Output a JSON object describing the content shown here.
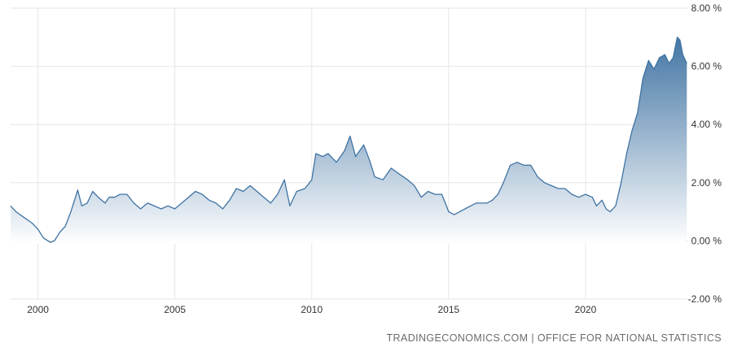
{
  "source": "TRADINGECONOMICS.COM | OFFICE FOR NATIONAL STATISTICS",
  "colors": {
    "line": "#3f73a2",
    "fill_top": "#3a6fa0",
    "fill_bottom": "#ffffff",
    "grid": "#e6e6e6",
    "text": "#333333",
    "source": "#6b6b6b"
  },
  "chart_data": {
    "type": "area",
    "title": "",
    "xlabel": "",
    "ylabel": "",
    "xlim": [
      1999.0,
      2023.75
    ],
    "ylim": [
      -2,
      8
    ],
    "grid": true,
    "y_axis_position": "right",
    "y_ticks": [
      8,
      6,
      4,
      2,
      0,
      -2
    ],
    "y_tick_labels": [
      "8.00 %",
      "6.00 %",
      "4.00 %",
      "2.00 %",
      "0.00 %",
      "-2.00 %"
    ],
    "x_ticks": [
      2000,
      2005,
      2010,
      2015,
      2020
    ],
    "x_tick_labels": [
      "2000",
      "2005",
      "2010",
      "2015",
      "2020"
    ],
    "series": [
      {
        "points": [
          [
            1999.0,
            1.2
          ],
          [
            1999.2,
            1.0
          ],
          [
            1999.5,
            0.8
          ],
          [
            1999.8,
            0.6
          ],
          [
            2000.0,
            0.4
          ],
          [
            2000.2,
            0.1
          ],
          [
            2000.45,
            -0.05
          ],
          [
            2000.6,
            0.0
          ],
          [
            2000.8,
            0.3
          ],
          [
            2001.0,
            0.5
          ],
          [
            2001.2,
            1.0
          ],
          [
            2001.45,
            1.75
          ],
          [
            2001.6,
            1.2
          ],
          [
            2001.8,
            1.3
          ],
          [
            2002.0,
            1.7
          ],
          [
            2002.2,
            1.5
          ],
          [
            2002.45,
            1.3
          ],
          [
            2002.6,
            1.5
          ],
          [
            2002.8,
            1.5
          ],
          [
            2003.0,
            1.6
          ],
          [
            2003.25,
            1.6
          ],
          [
            2003.5,
            1.3
          ],
          [
            2003.75,
            1.1
          ],
          [
            2004.0,
            1.3
          ],
          [
            2004.25,
            1.2
          ],
          [
            2004.5,
            1.1
          ],
          [
            2004.75,
            1.2
          ],
          [
            2005.0,
            1.1
          ],
          [
            2005.25,
            1.3
          ],
          [
            2005.5,
            1.5
          ],
          [
            2005.75,
            1.7
          ],
          [
            2006.0,
            1.6
          ],
          [
            2006.25,
            1.4
          ],
          [
            2006.5,
            1.3
          ],
          [
            2006.75,
            1.1
          ],
          [
            2007.0,
            1.4
          ],
          [
            2007.25,
            1.8
          ],
          [
            2007.5,
            1.7
          ],
          [
            2007.75,
            1.9
          ],
          [
            2008.0,
            1.7
          ],
          [
            2008.25,
            1.5
          ],
          [
            2008.5,
            1.3
          ],
          [
            2008.75,
            1.6
          ],
          [
            2009.0,
            2.1
          ],
          [
            2009.2,
            1.2
          ],
          [
            2009.45,
            1.7
          ],
          [
            2009.75,
            1.8
          ],
          [
            2010.0,
            2.1
          ],
          [
            2010.15,
            3.0
          ],
          [
            2010.4,
            2.9
          ],
          [
            2010.6,
            3.0
          ],
          [
            2010.9,
            2.7
          ],
          [
            2011.2,
            3.1
          ],
          [
            2011.4,
            3.6
          ],
          [
            2011.6,
            2.9
          ],
          [
            2011.9,
            3.3
          ],
          [
            2012.1,
            2.8
          ],
          [
            2012.3,
            2.2
          ],
          [
            2012.6,
            2.1
          ],
          [
            2012.9,
            2.5
          ],
          [
            2013.2,
            2.3
          ],
          [
            2013.5,
            2.1
          ],
          [
            2013.75,
            1.9
          ],
          [
            2014.0,
            1.5
          ],
          [
            2014.25,
            1.7
          ],
          [
            2014.5,
            1.6
          ],
          [
            2014.75,
            1.6
          ],
          [
            2015.0,
            1.0
          ],
          [
            2015.2,
            0.9
          ],
          [
            2015.4,
            1.0
          ],
          [
            2015.6,
            1.1
          ],
          [
            2015.8,
            1.2
          ],
          [
            2016.0,
            1.3
          ],
          [
            2016.2,
            1.3
          ],
          [
            2016.4,
            1.3
          ],
          [
            2016.6,
            1.4
          ],
          [
            2016.8,
            1.6
          ],
          [
            2017.0,
            2.0
          ],
          [
            2017.25,
            2.6
          ],
          [
            2017.5,
            2.7
          ],
          [
            2017.75,
            2.6
          ],
          [
            2018.0,
            2.6
          ],
          [
            2018.25,
            2.2
          ],
          [
            2018.5,
            2.0
          ],
          [
            2018.75,
            1.9
          ],
          [
            2019.0,
            1.8
          ],
          [
            2019.25,
            1.8
          ],
          [
            2019.5,
            1.6
          ],
          [
            2019.75,
            1.5
          ],
          [
            2020.0,
            1.6
          ],
          [
            2020.25,
            1.5
          ],
          [
            2020.4,
            1.2
          ],
          [
            2020.6,
            1.4
          ],
          [
            2020.75,
            1.1
          ],
          [
            2020.9,
            1.0
          ],
          [
            2021.1,
            1.2
          ],
          [
            2021.3,
            2.0
          ],
          [
            2021.5,
            3.0
          ],
          [
            2021.7,
            3.8
          ],
          [
            2021.9,
            4.4
          ],
          [
            2022.1,
            5.6
          ],
          [
            2022.3,
            6.2
          ],
          [
            2022.5,
            5.9
          ],
          [
            2022.7,
            6.3
          ],
          [
            2022.9,
            6.4
          ],
          [
            2023.05,
            6.1
          ],
          [
            2023.2,
            6.3
          ],
          [
            2023.35,
            7.0
          ],
          [
            2023.45,
            6.9
          ],
          [
            2023.55,
            6.4
          ],
          [
            2023.7,
            6.1
          ]
        ]
      }
    ]
  }
}
